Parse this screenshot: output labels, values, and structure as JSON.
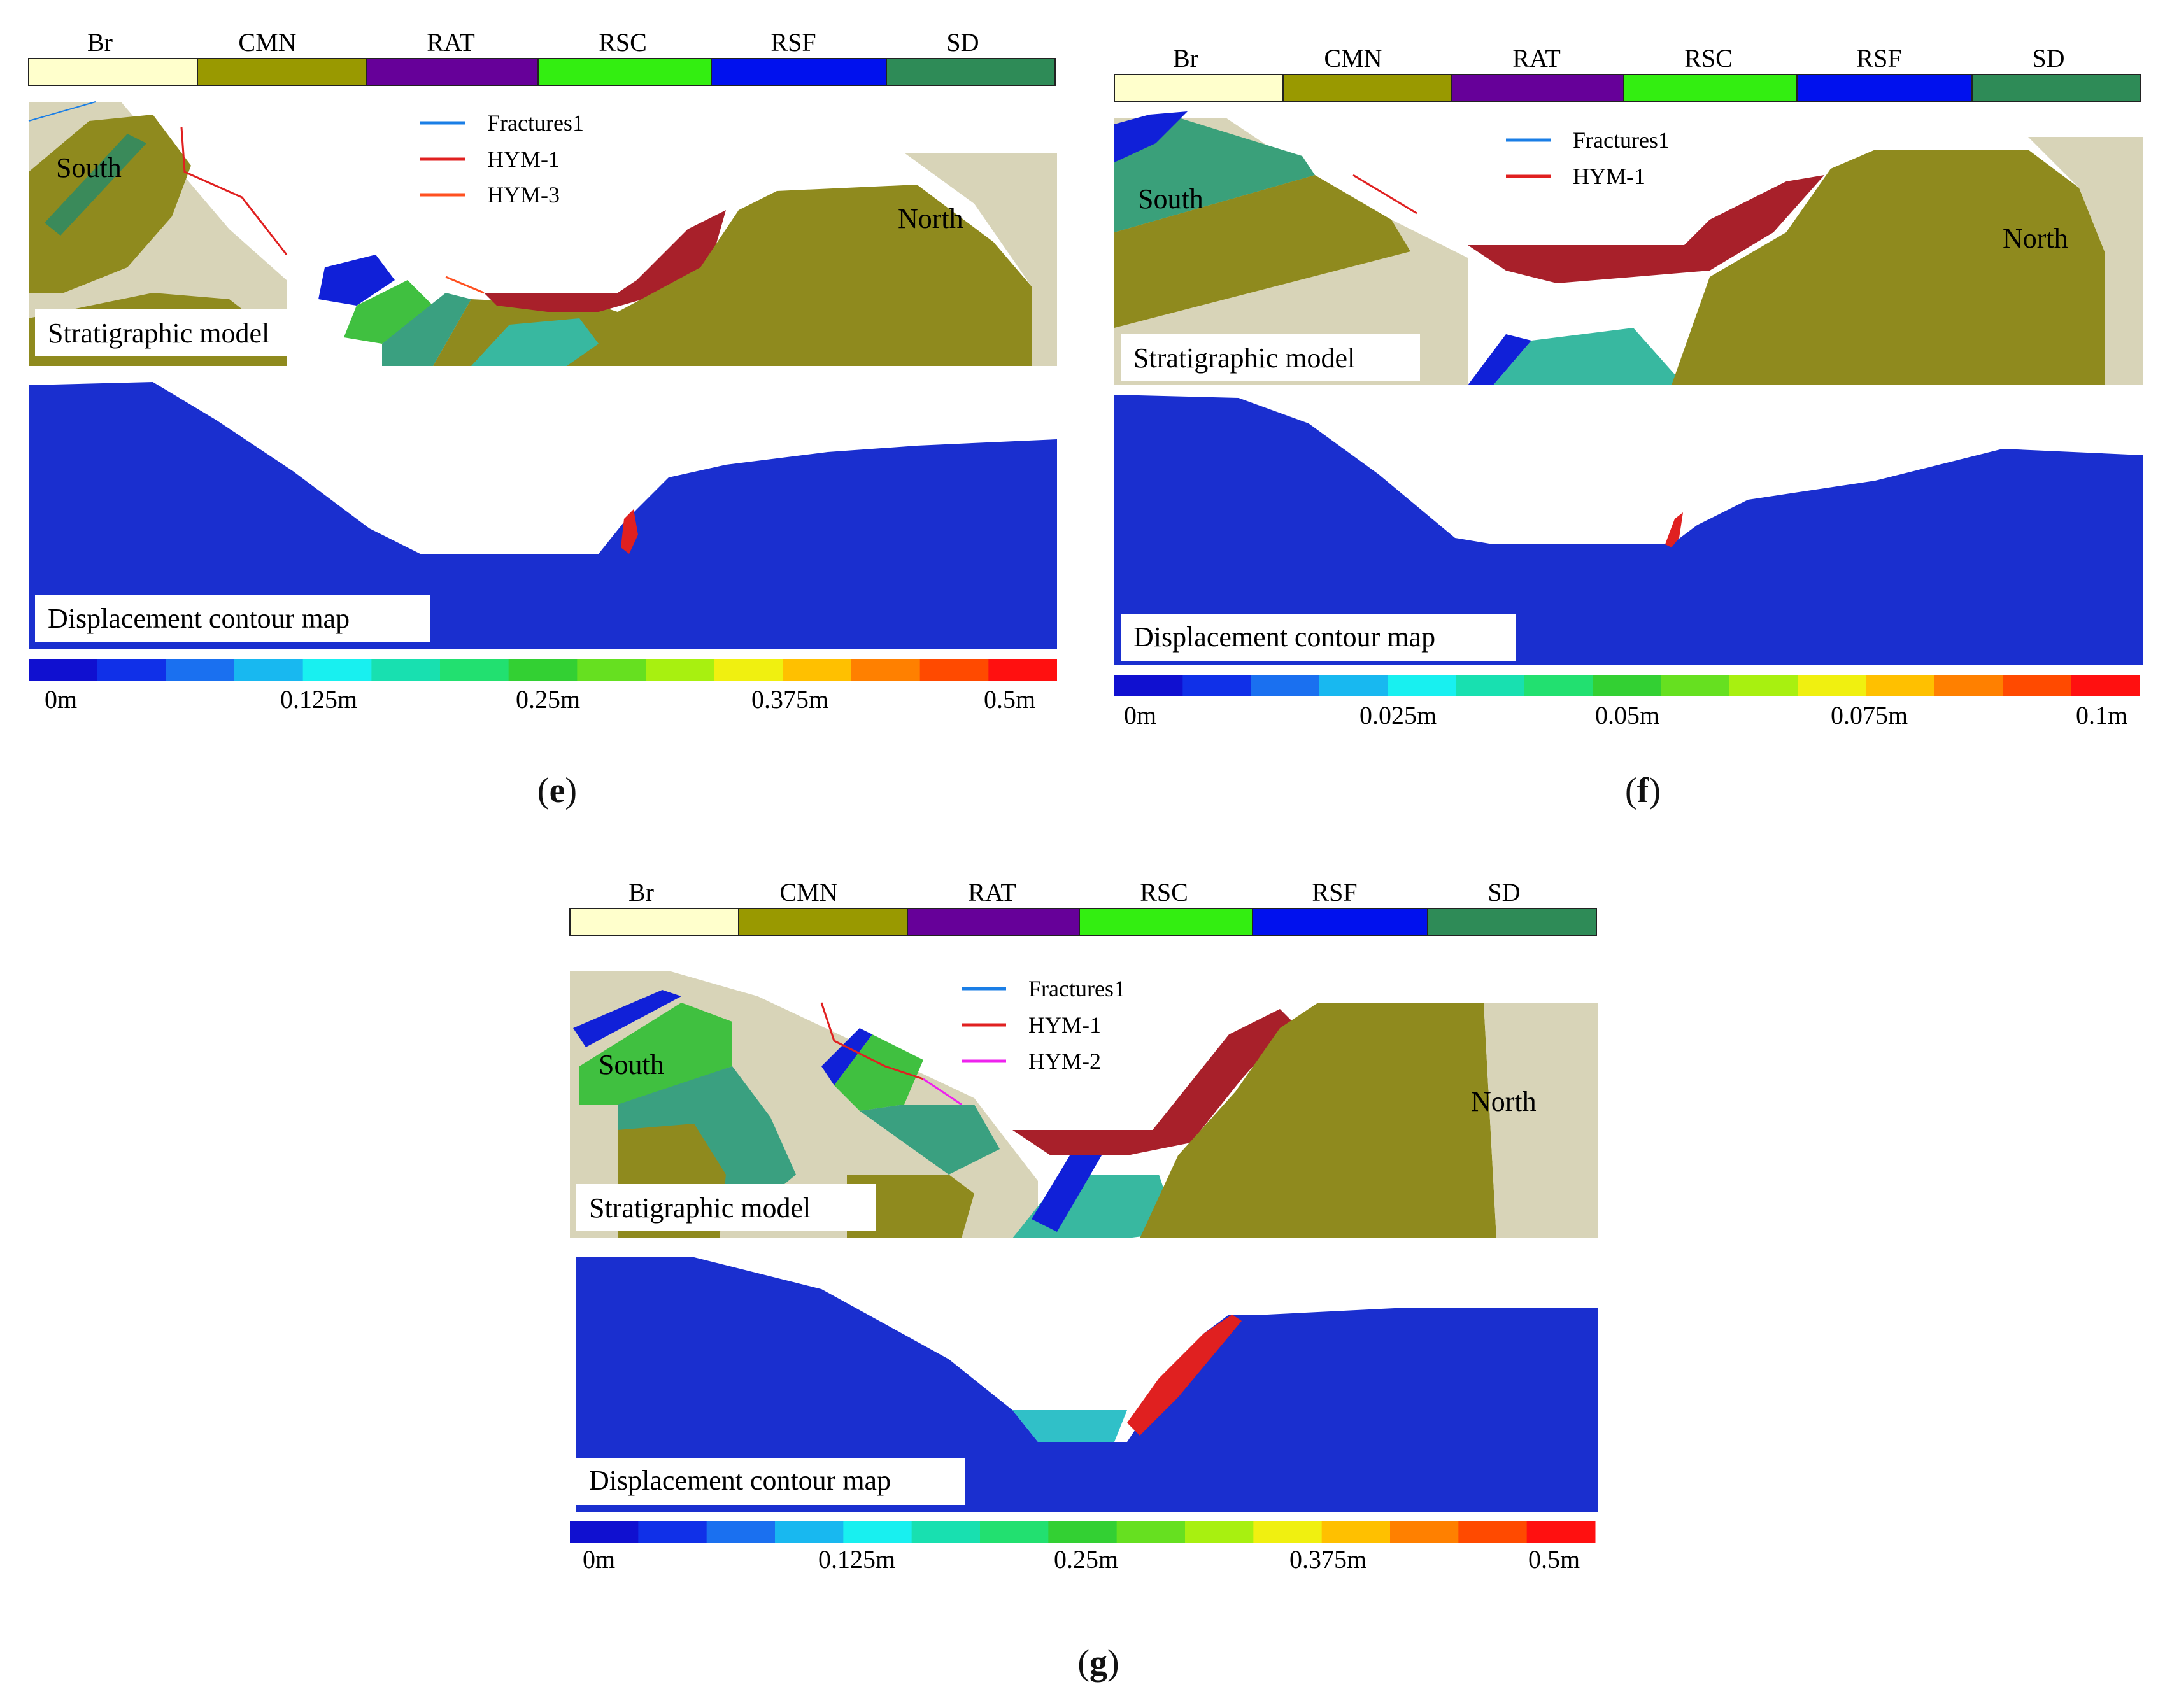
{
  "legend_strata": [
    {
      "code": "Br",
      "color": "#ffffcc"
    },
    {
      "code": "CMN",
      "color": "#999900"
    },
    {
      "code": "RAT",
      "color": "#660099"
    },
    {
      "code": "RSC",
      "color": "#33ee11"
    },
    {
      "code": "RSF",
      "color": "#0011ee"
    },
    {
      "code": "SD",
      "color": "#2e8b57"
    }
  ],
  "contour_colors": [
    "#1010d0",
    "#1030e8",
    "#1a70f0",
    "#18b8f0",
    "#18f0f0",
    "#18e0b0",
    "#22e070",
    "#33d033",
    "#66e020",
    "#a8f010",
    "#f0f010",
    "#ffc000",
    "#ff8000",
    "#ff4a00",
    "#ff1010"
  ],
  "panels": [
    {
      "id": "e",
      "caption": "e",
      "orientation": {
        "south": "South",
        "north": "North"
      },
      "lines_legend": [
        {
          "label": "Fractures1",
          "color": "#1a7ee6"
        },
        {
          "label": "HYM-1",
          "color": "#e02020"
        },
        {
          "label": "HYM-3",
          "color": "#ff5020"
        }
      ],
      "strat_label": "Stratigraphic model",
      "disp_label": "Displacement contour map",
      "scale_ticks": [
        "0m",
        "0.125m",
        "0.25m",
        "0.375m",
        "0.5m"
      ]
    },
    {
      "id": "f",
      "caption": "f",
      "orientation": {
        "south": "South",
        "north": "North"
      },
      "lines_legend": [
        {
          "label": "Fractures1",
          "color": "#1a7ee6"
        },
        {
          "label": "HYM-1",
          "color": "#e02020"
        }
      ],
      "strat_label": "Stratigraphic model",
      "disp_label": "Displacement contour map",
      "scale_ticks": [
        "0m",
        "0.025m",
        "0.05m",
        "0.075m",
        "0.1m"
      ]
    },
    {
      "id": "g",
      "caption": "g",
      "orientation": {
        "south": "South",
        "north": "North"
      },
      "lines_legend": [
        {
          "label": "Fractures1",
          "color": "#1a7ee6"
        },
        {
          "label": "HYM-1",
          "color": "#e02020"
        },
        {
          "label": "HYM-2",
          "color": "#ee22ee"
        }
      ],
      "strat_label": "Stratigraphic model",
      "disp_label": "Displacement contour map",
      "scale_ticks": [
        "0m",
        "0.125m",
        "0.25m",
        "0.375m",
        "0.5m"
      ]
    }
  ]
}
